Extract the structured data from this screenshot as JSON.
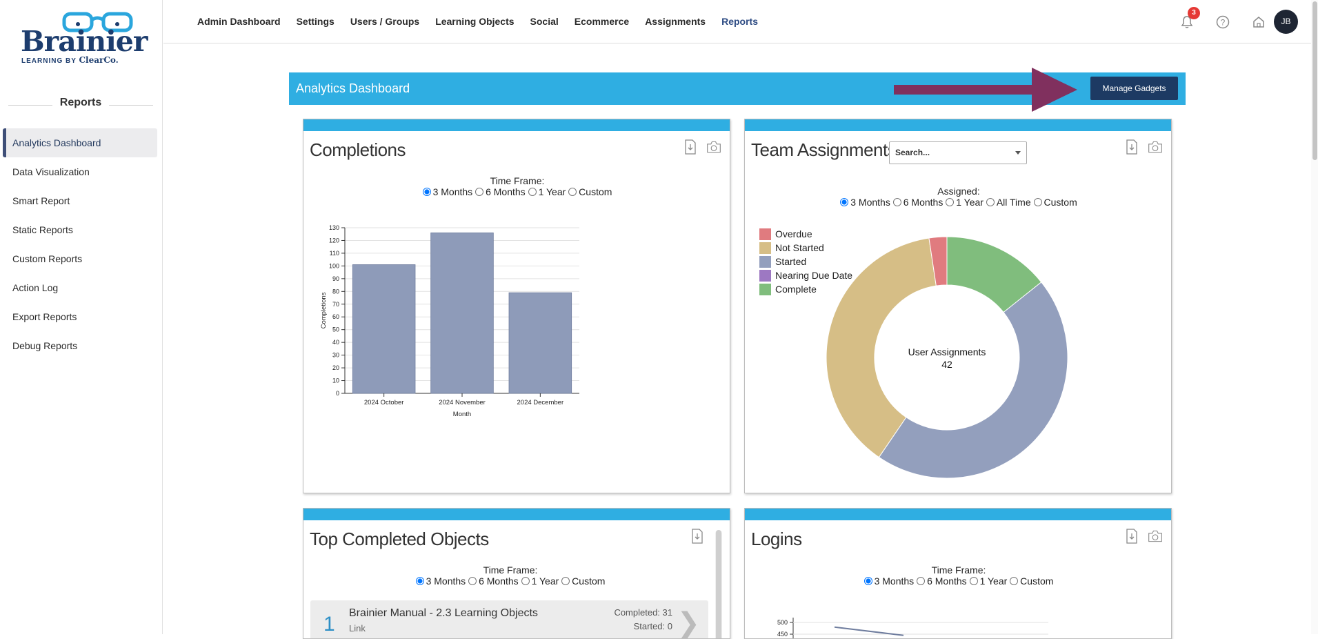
{
  "brand": {
    "name": "Brainier",
    "tagline": "LEARNING BY",
    "tagline_brand": "ClearCo."
  },
  "sidebar": {
    "heading": "Reports",
    "items": [
      {
        "label": "Analytics Dashboard",
        "active": true
      },
      {
        "label": "Data Visualization"
      },
      {
        "label": "Smart Report"
      },
      {
        "label": "Static Reports"
      },
      {
        "label": "Custom Reports"
      },
      {
        "label": "Action Log"
      },
      {
        "label": "Export Reports"
      },
      {
        "label": "Debug Reports"
      }
    ]
  },
  "topnav": {
    "items": [
      "Admin Dashboard",
      "Settings",
      "Users / Groups",
      "Learning Objects",
      "Social",
      "Ecommerce",
      "Assignments",
      "Reports"
    ],
    "active": "Reports",
    "notification_count": "3",
    "user_initials": "JB"
  },
  "dashboard": {
    "title": "Analytics Dashboard",
    "manage_label": "Manage Gadgets"
  },
  "completions": {
    "title": "Completions",
    "timeframe_label": "Time Frame:",
    "options": [
      "3 Months",
      "6 Months",
      "1 Year",
      "Custom"
    ],
    "selected": "3 Months"
  },
  "team": {
    "title": "Team Assignments",
    "search_placeholder": "Search...",
    "assigned_label": "Assigned:",
    "options": [
      "3 Months",
      "6 Months",
      "1 Year",
      "All Time",
      "Custom"
    ],
    "selected": "3 Months",
    "center_label": "User Assignments",
    "center_value": "42",
    "legend": [
      {
        "name": "Overdue",
        "color": "#e07b7f"
      },
      {
        "name": "Not Started",
        "color": "#d6be86"
      },
      {
        "name": "Started",
        "color": "#939fbd"
      },
      {
        "name": "Nearing Due Date",
        "color": "#9d78c2"
      },
      {
        "name": "Complete",
        "color": "#80bd7d"
      }
    ]
  },
  "top_objects": {
    "title": "Top Completed Objects",
    "timeframe_label": "Time Frame:",
    "options": [
      "3 Months",
      "6 Months",
      "1 Year",
      "Custom"
    ],
    "selected": "3 Months",
    "rows": [
      {
        "rank": "1",
        "name": "Brainier Manual - 2.3 Learning Objects",
        "type": "Link",
        "completed": "Completed: 31",
        "started": "Started: 0"
      }
    ]
  },
  "logins": {
    "title": "Logins",
    "timeframe_label": "Time Frame:",
    "options": [
      "3 Months",
      "6 Months",
      "1 Year",
      "Custom"
    ],
    "selected": "3 Months"
  },
  "chart_data": [
    {
      "type": "bar",
      "title": "",
      "xlabel": "Month",
      "ylabel": "Completions",
      "categories": [
        "2024 October",
        "2024 November",
        "2024 December"
      ],
      "values": [
        101,
        126,
        79
      ],
      "ylim": [
        0,
        130
      ],
      "yticks": [
        0,
        10,
        20,
        30,
        40,
        50,
        60,
        70,
        80,
        90,
        100,
        110,
        120,
        130
      ],
      "grid": true,
      "color": "#8e9bb9"
    },
    {
      "type": "pie",
      "title": "",
      "categories": [
        "Overdue",
        "Not Started",
        "Started",
        "Nearing Due Date",
        "Complete"
      ],
      "values": [
        1,
        16,
        19,
        0,
        6
      ],
      "colors": [
        "#e07b7f",
        "#d6be86",
        "#939fbd",
        "#9d78c2",
        "#80bd7d"
      ]
    },
    {
      "type": "line",
      "title": "",
      "yticks_visible": [
        450,
        500
      ],
      "series": [
        {
          "values": [
            480,
            445
          ]
        }
      ]
    }
  ]
}
